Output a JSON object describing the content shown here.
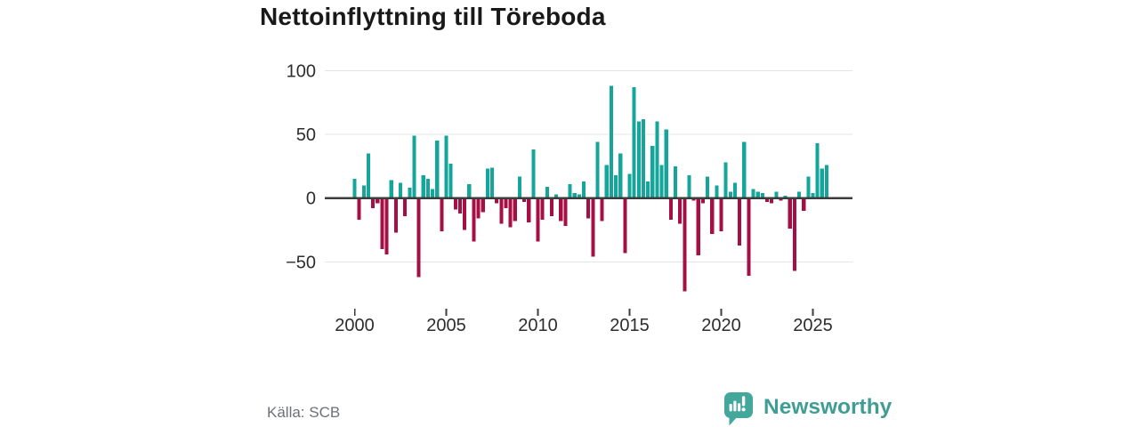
{
  "header": {
    "title": "Nettoinflyttning till Töreboda"
  },
  "footer": {
    "source": "Källa: SCB",
    "brand_name": "Newsworthy",
    "brand_color": "#3f9d94",
    "brand_icon_color": "#43a79c"
  },
  "chart_data": {
    "type": "bar",
    "title": "Nettoinflyttning till Töreboda",
    "period": "quarterly",
    "start": "2000Q1",
    "end": "2025Q4",
    "values": [
      15,
      -17,
      10,
      35,
      -8,
      -4,
      -40,
      -44,
      14,
      -27,
      12,
      -14,
      8,
      49,
      -62,
      18,
      15,
      7,
      45,
      -26,
      49,
      27,
      -9,
      -12,
      -25,
      11,
      -34,
      -16,
      -11,
      23,
      24,
      -4,
      -20,
      -8,
      -23,
      -18,
      17,
      -3,
      -19,
      38,
      -34,
      -17,
      9,
      -14,
      3,
      -18,
      -22,
      11,
      4,
      3,
      13,
      -16,
      -46,
      44,
      -18,
      26,
      88,
      18,
      35,
      -43,
      19,
      87,
      60,
      62,
      13,
      41,
      60,
      26,
      54,
      -17,
      25,
      -20,
      -73,
      18,
      -2,
      -45,
      -4,
      17,
      -28,
      10,
      -26,
      28,
      5,
      12,
      -37,
      44,
      -61,
      7,
      5,
      4,
      -3,
      -4,
      5,
      -2,
      2,
      -24,
      -57,
      5,
      -10,
      17,
      4,
      43,
      23,
      26
    ],
    "yticks": [
      100,
      50,
      0,
      -50
    ],
    "ytick_labels": [
      "100",
      "50",
      "0",
      "−50"
    ],
    "xtick_labels": [
      "2000",
      "2005",
      "2010",
      "2015",
      "2020",
      "2025"
    ],
    "xtick_indices": [
      0,
      20,
      40,
      60,
      80,
      100
    ],
    "ylim": [
      -80,
      105
    ],
    "grid": "horizontal-at-yticks",
    "zero_line": true,
    "legend": "none",
    "positive_color": "#14a59b",
    "negative_color": "#a50f44",
    "grid_color": "#e4e4e4",
    "zero_line_color": "#3c3c3c",
    "axis_text_color": "#2d2d2e"
  }
}
